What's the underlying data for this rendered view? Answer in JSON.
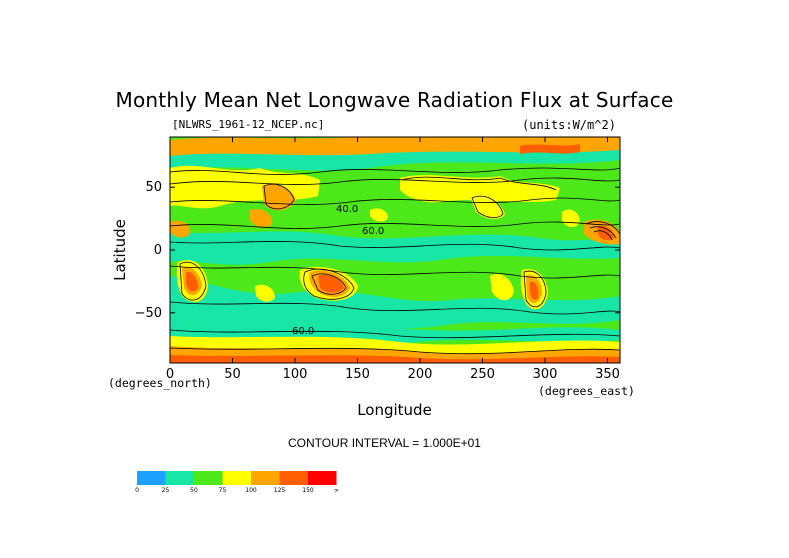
{
  "chart_data": {
    "type": "heatmap",
    "title": "Monthly Mean Net Longwave Radiation Flux at Surface",
    "file_label": "[NLWRS_1961-12_NCEP.nc]",
    "units_label": "(units:W/m^2)",
    "xlabel": "Longitude",
    "ylabel": "Latitude",
    "x_unit_label": "(degrees_east)",
    "y_unit_label": "(degrees_north)",
    "xlim": [
      0,
      360
    ],
    "ylim": [
      -90,
      90
    ],
    "x_ticks": [
      0,
      50,
      100,
      150,
      200,
      250,
      300,
      350
    ],
    "y_ticks": [
      50,
      0,
      -50
    ],
    "contour_interval_text": "CONTOUR INTERVAL = 1.000E+01",
    "contour_interval": 10,
    "contour_labels": [
      "60.0",
      "40.0",
      "60.0"
    ],
    "colorbar": {
      "levels": [
        "0",
        "25",
        "50",
        "75",
        "100",
        "125",
        "150",
        "∞"
      ],
      "colors": [
        "#1ea0ff",
        "#18e6a6",
        "#4ce81a",
        "#ffff00",
        "#ffa500",
        "#ff5f00",
        "#ff0000"
      ]
    }
  }
}
